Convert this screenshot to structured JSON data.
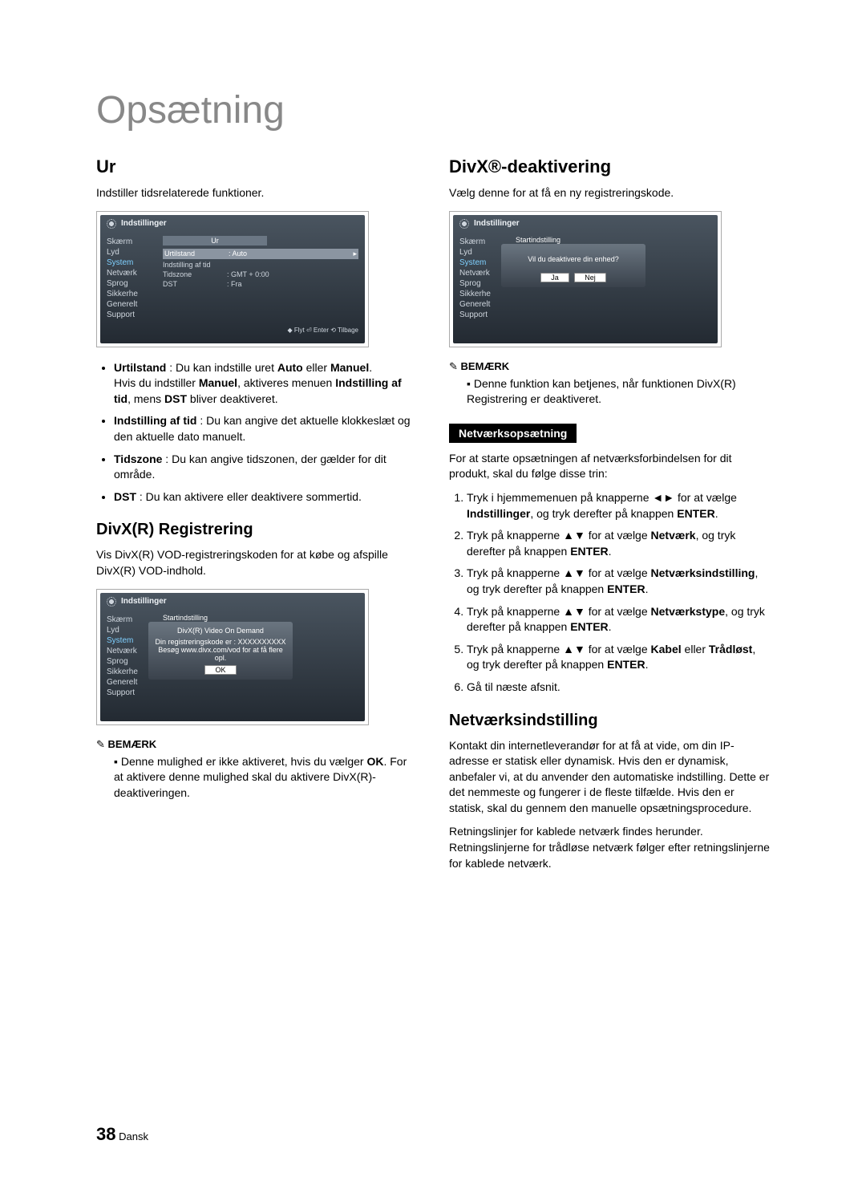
{
  "page": {
    "title": "Opsætning",
    "number": "38",
    "lang": "Dansk"
  },
  "left": {
    "h_ur": "Ur",
    "ur_intro": "Indstiller tidsrelaterede funktioner.",
    "ur_panel": {
      "title": "Indstillinger",
      "side": [
        "Skærm",
        "Lyd",
        "System",
        "Netværk",
        "Sprog",
        "Sikkerhe",
        "Generelt",
        "Support"
      ],
      "subtitle": "Ur",
      "rows": [
        {
          "k": "Urtilstand",
          "v": ": Auto",
          "hi": true,
          "arrow": "▸"
        },
        {
          "k": "Indstilling af tid",
          "v": ""
        },
        {
          "k": "Tidszone",
          "v": ": GMT + 0:00"
        },
        {
          "k": "DST",
          "v": ": Fra"
        }
      ],
      "hints": "◆ Flyt   ⏎ Enter   ⟲ Tilbage"
    },
    "ur_bullets": [
      "<b>Urtilstand</b> : Du kan indstille uret <b>Auto</b> eller <b>Manuel</b>.<br>Hvis du indstiller <b>Manuel</b>, aktiveres menuen <b>Indstilling af tid</b>, mens <b>DST</b> bliver deaktiveret.",
      "<b>Indstilling af tid</b> : Du kan angive det aktuelle klokkeslæt og den aktuelle dato manuelt.",
      "<b>Tidszone</b> : Du kan angive tidszonen, der gælder for dit område.",
      "<b>DST</b> : Du kan aktivere eller deaktivere sommertid."
    ],
    "h_divxreg": "DivX(R) Registrering",
    "divxreg_intro": "Vis DivX(R) VOD-registreringskoden for at købe og afspille DivX(R) VOD-indhold.",
    "divxreg_panel": {
      "title": "Indstillinger",
      "side": [
        "Skærm",
        "Lyd",
        "System",
        "Netværk",
        "Sprog",
        "Sikkerhe",
        "Generelt",
        "Support"
      ],
      "header": "Startindstilling",
      "dlg_title": "DivX(R) Video On Demand",
      "dlg_line1": "Din registreringskode er : XXXXXXXXXX",
      "dlg_line2": "Besøg www.divx.com/vod for at få flere opl.",
      "dlg_ok": "OK"
    },
    "note1_head": "BEMÆRK",
    "note1_items": [
      "Denne mulighed er ikke aktiveret, hvis du vælger <b>OK</b>. For at aktivere denne mulighed skal du aktivere DivX(R)-deaktiveringen."
    ]
  },
  "right": {
    "h_deact": "DivX®-deaktivering",
    "deact_intro": "Vælg denne for at få en ny registreringskode.",
    "deact_panel": {
      "title": "Indstillinger",
      "side": [
        "Skærm",
        "Lyd",
        "System",
        "Netværk",
        "Sprog",
        "Sikkerhe",
        "Generelt",
        "Support"
      ],
      "header": "Startindstilling",
      "dlg_text": "Vil du deaktivere din enhed?",
      "btn_yes": "Ja",
      "btn_no": "Nej"
    },
    "note2_head": "BEMÆRK",
    "note2_items": [
      "Denne funktion kan betjenes, når funktionen DivX(R) Registrering er deaktiveret."
    ],
    "bar_net": "Netværksopsætning",
    "net_intro": "For at starte opsætningen af netværksforbindelsen for dit produkt, skal du følge disse trin:",
    "net_steps": [
      "Tryk i hjemmemenuen på knapperne ◄► for at vælge <b>Indstillinger</b>, og tryk derefter på knappen <b>ENTER</b>.",
      "Tryk på knapperne ▲▼ for at vælge <b>Netværk</b>, og tryk derefter på knappen <b>ENTER</b>.",
      "Tryk på knapperne ▲▼ for at vælge <b>Netværksindstilling</b>, og tryk derefter på knappen <b>ENTER</b>.",
      "Tryk på knapperne ▲▼ for at vælge <b>Netværkstype</b>, og tryk derefter på knappen <b>ENTER</b>.",
      "Tryk på knapperne ▲▼ for at vælge <b>Kabel</b> eller <b>Trådløst</b>, og tryk derefter på knappen <b>ENTER</b>.",
      "Gå til næste afsnit."
    ],
    "h_netind": "Netværksindstilling",
    "netind_p1": "Kontakt din internetleverandør for at få at vide, om din IP-adresse er statisk eller dynamisk. Hvis den er dynamisk, anbefaler vi, at du anvender den automatiske indstilling. Dette er det nemmeste og fungerer i de fleste tilfælde. Hvis den er statisk, skal du gennem den manuelle opsætningsprocedure.",
    "netind_p2": "Retningslinjer for kablede netværk findes herunder. Retningslinjerne for trådløse netværk følger efter retningslinjerne for kablede netværk."
  }
}
